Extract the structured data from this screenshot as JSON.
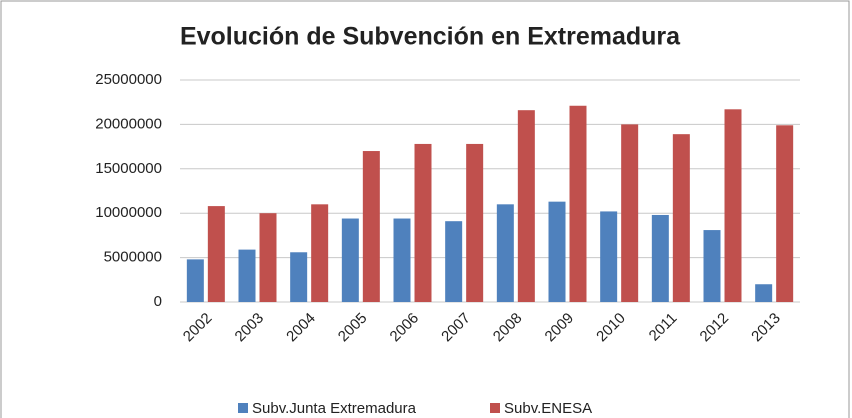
{
  "chart_data": {
    "type": "bar",
    "title": "Evolución de Subvención en Extremadura",
    "categories": [
      "2002",
      "2003",
      "2004",
      "2005",
      "2006",
      "2007",
      "2008",
      "2009",
      "2010",
      "2011",
      "2012",
      "2013"
    ],
    "series": [
      {
        "name": "Subv.Junta Extremadura",
        "color": "#4f81bd",
        "values": [
          4800000,
          5900000,
          5600000,
          9400000,
          9400000,
          9100000,
          11000000,
          11300000,
          10200000,
          9800000,
          8100000,
          2000000
        ]
      },
      {
        "name": "Subv.ENESA",
        "color": "#c0504d",
        "values": [
          10800000,
          10000000,
          11000000,
          17000000,
          17800000,
          17800000,
          21600000,
          22100000,
          20000000,
          18900000,
          21700000,
          19900000
        ]
      }
    ],
    "ylim": [
      0,
      25000000
    ],
    "yticks": [
      0,
      5000000,
      10000000,
      15000000,
      20000000,
      25000000
    ],
    "grid": true,
    "legend": "bottom"
  }
}
